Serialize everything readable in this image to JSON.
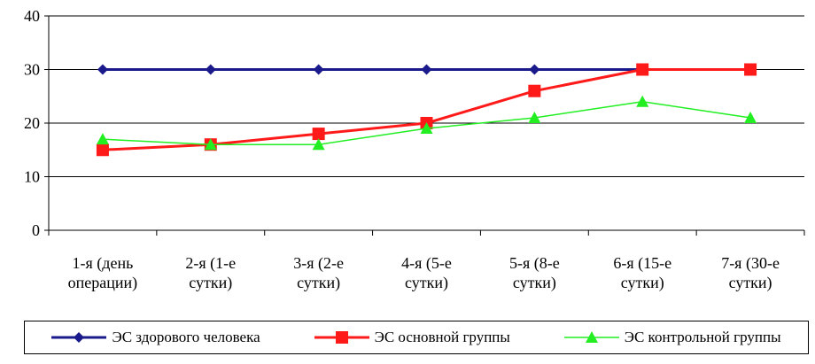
{
  "chart_data": {
    "type": "line",
    "categories": [
      [
        "1-я (день",
        "операции)"
      ],
      [
        "2-я (1-е",
        "сутки)"
      ],
      [
        "3-я (2-е",
        "сутки)"
      ],
      [
        "4-я (5-е",
        "сутки)"
      ],
      [
        "5-я (8-е",
        "сутки)"
      ],
      [
        "6-я (15-е",
        "сутки)"
      ],
      [
        "7-я (30-е",
        "сутки)"
      ]
    ],
    "ylim": [
      0,
      40
    ],
    "yticks": [
      0,
      10,
      20,
      30,
      40
    ],
    "grid": true,
    "legend_position": "bottom",
    "series": [
      {
        "name": "ЭС здорового человека",
        "values": [
          30,
          30,
          30,
          30,
          30,
          30,
          30
        ],
        "color": "#1a1a8c",
        "marker": "diamond"
      },
      {
        "name": "ЭС основной группы",
        "values": [
          15,
          16,
          18,
          20,
          26,
          30,
          30
        ],
        "color": "#ff1a1a",
        "marker": "square"
      },
      {
        "name": "ЭС контрольной группы",
        "values": [
          17,
          16,
          16,
          19,
          21,
          24,
          21
        ],
        "color": "#22ee22",
        "marker": "triangle"
      }
    ]
  }
}
